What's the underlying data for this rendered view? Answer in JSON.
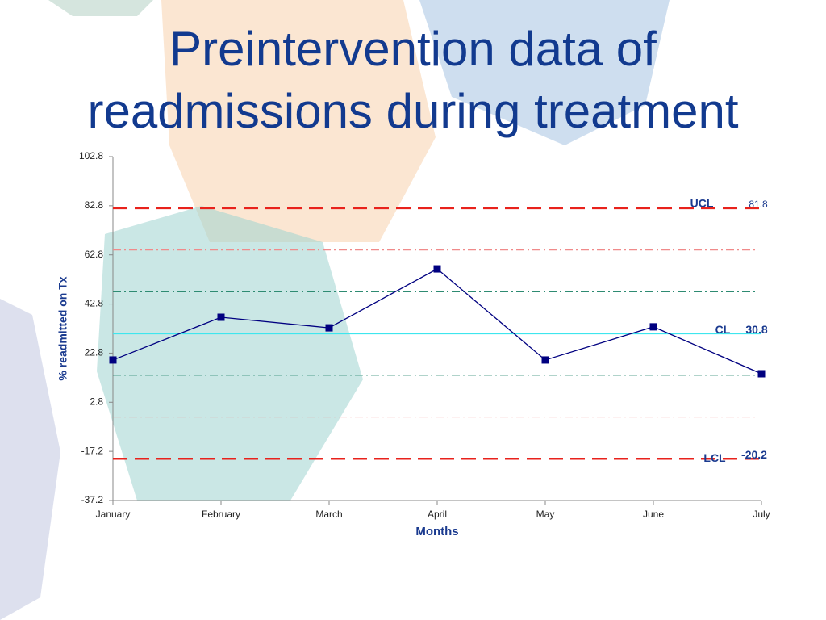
{
  "chart_data": {
    "type": "line",
    "title": "Preintervention data of readmissions during treatment",
    "x_label": "Months",
    "y_label": "% readmitted on Tx",
    "categories": [
      "January",
      "February",
      "March",
      "April",
      "May",
      "June",
      "July"
    ],
    "values": [
      20.0,
      37.4,
      33.1,
      57.1,
      20.0,
      33.5,
      14.4
    ],
    "color": "#000080",
    "ylim": [
      -37.2,
      102.8
    ],
    "yticks": [
      -37.2,
      -17.2,
      2.8,
      22.8,
      42.8,
      62.8,
      82.8,
      102.8
    ],
    "control_lines": [
      {
        "label": "UCL",
        "value": 81.8,
        "color": "#e8221c",
        "style": "dashed"
      },
      {
        "label": "CL",
        "value": 30.8,
        "color": "#3ee6ee",
        "style": "solid"
      },
      {
        "label": "LCL",
        "value": -20.2,
        "color": "#e8221c",
        "style": "dashed"
      }
    ],
    "sigma_lines": [
      {
        "value": 64.8,
        "color": "#f08a8a"
      },
      {
        "value": 47.8,
        "color": "#2e8b72"
      },
      {
        "value": 13.8,
        "color": "#2e8b72"
      },
      {
        "value": -3.2,
        "color": "#f08a8a"
      }
    ]
  }
}
